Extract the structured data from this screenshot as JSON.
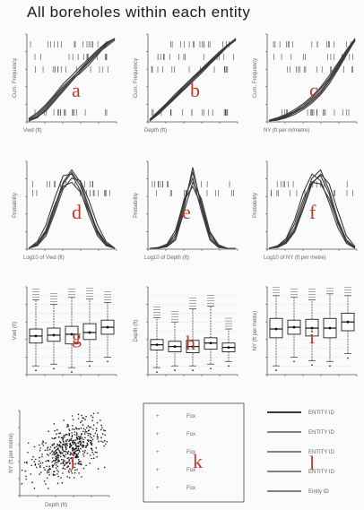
{
  "title": "All boreholes within each entity",
  "panel_letters": [
    "a",
    "b",
    "c",
    "d",
    "e",
    "f",
    "g",
    "h",
    "i",
    "j",
    "k",
    "l"
  ],
  "row1": {
    "type": "line",
    "panels": [
      {
        "id": "a",
        "ylabel": "Cum. Frequency",
        "xlabel": "Vwd (ft)"
      },
      {
        "id": "b",
        "ylabel": "Cum. Frequency",
        "xlabel": "Depth (ft)"
      },
      {
        "id": "c",
        "ylabel": "Cum. Frequency",
        "xlabel": "NY (ft per m/metre)"
      }
    ]
  },
  "row2": {
    "type": "line",
    "panels": [
      {
        "id": "d",
        "ylabel": "Probability",
        "xlabel": "Log10 of Vwd (ft)"
      },
      {
        "id": "e",
        "ylabel": "Probability",
        "xlabel": "Log10 of Depth (ft)"
      },
      {
        "id": "f",
        "ylabel": "Probability",
        "xlabel": "Log10 of NY (ft per metre)"
      }
    ]
  },
  "row3": {
    "type": "box",
    "panels": [
      {
        "id": "g",
        "ylabel": "Vwd (ft)"
      },
      {
        "id": "h",
        "ylabel": "Depth (ft)"
      },
      {
        "id": "i",
        "ylabel": "NY (ft per metre)"
      }
    ]
  },
  "row4": {
    "scatter": {
      "id": "j",
      "xlabel": "Depth (ft)",
      "ylabel": "NY (ft per metre)"
    },
    "legend_k": {
      "id": "k",
      "entries": [
        "Fox",
        "Fox",
        "Fox",
        "Fox",
        "Fox"
      ]
    },
    "legend_l": {
      "id": "l",
      "entries": [
        "ENTITY ID",
        "ENTITY ID",
        "ENTITY ID",
        "ENTITY ID",
        "Entity ID"
      ]
    }
  },
  "chart_data": [
    {
      "type": "line",
      "panel": "a",
      "series": [
        {
          "x": [
            0,
            1,
            2,
            3,
            4,
            5,
            6,
            7,
            8,
            9,
            10
          ],
          "values": [
            0.02,
            0.08,
            0.18,
            0.3,
            0.42,
            0.52,
            0.62,
            0.72,
            0.83,
            0.93,
            1.0
          ]
        },
        {
          "x": [
            0,
            1,
            2,
            3,
            4,
            5,
            6,
            7,
            8,
            9,
            10
          ],
          "values": [
            0.0,
            0.05,
            0.12,
            0.24,
            0.36,
            0.48,
            0.6,
            0.71,
            0.82,
            0.9,
            0.98
          ]
        },
        {
          "x": [
            0,
            1,
            2,
            3,
            4,
            5,
            6,
            7,
            8,
            9,
            10
          ],
          "values": [
            0.01,
            0.06,
            0.16,
            0.28,
            0.4,
            0.5,
            0.58,
            0.68,
            0.8,
            0.92,
            1.0
          ]
        },
        {
          "x": [
            0,
            1,
            2,
            3,
            4,
            5,
            6,
            7,
            8,
            9,
            10
          ],
          "values": [
            0.03,
            0.1,
            0.2,
            0.32,
            0.45,
            0.55,
            0.66,
            0.76,
            0.86,
            0.95,
            1.0
          ]
        },
        {
          "x": [
            0,
            1,
            2,
            3,
            4,
            5,
            6,
            7,
            8,
            9,
            10
          ],
          "values": [
            0.0,
            0.04,
            0.14,
            0.26,
            0.38,
            0.5,
            0.63,
            0.74,
            0.85,
            0.94,
            0.99
          ]
        }
      ]
    },
    {
      "type": "line",
      "panel": "b",
      "series": [
        {
          "x": [
            0,
            1,
            2,
            3,
            4,
            5,
            6,
            7,
            8,
            9,
            10
          ],
          "values": [
            0.0,
            0.1,
            0.2,
            0.3,
            0.4,
            0.5,
            0.6,
            0.7,
            0.8,
            0.9,
            1.0
          ]
        },
        {
          "x": [
            0,
            1,
            2,
            3,
            4,
            5,
            6,
            7,
            8,
            9,
            10
          ],
          "values": [
            0.02,
            0.12,
            0.22,
            0.33,
            0.43,
            0.53,
            0.63,
            0.73,
            0.83,
            0.92,
            1.0
          ]
        },
        {
          "x": [
            0,
            1,
            2,
            3,
            4,
            5,
            6,
            7,
            8,
            9,
            10
          ],
          "values": [
            0.0,
            0.08,
            0.18,
            0.28,
            0.38,
            0.48,
            0.58,
            0.69,
            0.79,
            0.9,
            0.99
          ]
        },
        {
          "x": [
            0,
            1,
            2,
            3,
            4,
            5,
            6,
            7,
            8,
            9,
            10
          ],
          "values": [
            0.01,
            0.11,
            0.21,
            0.31,
            0.42,
            0.52,
            0.62,
            0.72,
            0.82,
            0.91,
            1.0
          ]
        },
        {
          "x": [
            0,
            1,
            2,
            3,
            4,
            5,
            6,
            7,
            8,
            9,
            10
          ],
          "values": [
            0.0,
            0.09,
            0.19,
            0.29,
            0.39,
            0.5,
            0.61,
            0.71,
            0.81,
            0.9,
            0.98
          ]
        }
      ]
    },
    {
      "type": "line",
      "panel": "c",
      "series": [
        {
          "x": [
            0,
            1,
            2,
            3,
            4,
            5,
            6,
            7,
            8,
            9,
            10
          ],
          "values": [
            0.0,
            0.02,
            0.05,
            0.1,
            0.16,
            0.24,
            0.34,
            0.48,
            0.64,
            0.82,
            1.0
          ]
        },
        {
          "x": [
            0,
            1,
            2,
            3,
            4,
            5,
            6,
            7,
            8,
            9,
            10
          ],
          "values": [
            0.0,
            0.03,
            0.07,
            0.12,
            0.19,
            0.28,
            0.39,
            0.52,
            0.68,
            0.85,
            0.99
          ]
        },
        {
          "x": [
            0,
            1,
            2,
            3,
            4,
            5,
            6,
            7,
            8,
            9,
            10
          ],
          "values": [
            0.0,
            0.01,
            0.04,
            0.08,
            0.14,
            0.22,
            0.32,
            0.45,
            0.62,
            0.8,
            0.98
          ]
        },
        {
          "x": [
            0,
            1,
            2,
            3,
            4,
            5,
            6,
            7,
            8,
            9,
            10
          ],
          "values": [
            0.01,
            0.04,
            0.08,
            0.14,
            0.21,
            0.3,
            0.41,
            0.55,
            0.7,
            0.86,
            1.0
          ]
        },
        {
          "x": [
            0,
            1,
            2,
            3,
            4,
            5,
            6,
            7,
            8,
            9,
            10
          ],
          "values": [
            0.0,
            0.02,
            0.06,
            0.11,
            0.17,
            0.26,
            0.36,
            0.5,
            0.66,
            0.83,
            0.97
          ]
        }
      ]
    },
    {
      "type": "line",
      "panel": "d",
      "series": [
        {
          "x": [
            0,
            1,
            2,
            3,
            4,
            5,
            6,
            7,
            8,
            9,
            10
          ],
          "values": [
            0.0,
            0.05,
            0.2,
            0.5,
            0.8,
            0.95,
            0.8,
            0.5,
            0.2,
            0.05,
            0.0
          ]
        },
        {
          "x": [
            0,
            1,
            2,
            3,
            4,
            5,
            6,
            7,
            8,
            9,
            10
          ],
          "values": [
            0.0,
            0.08,
            0.28,
            0.6,
            0.88,
            0.9,
            0.7,
            0.4,
            0.15,
            0.03,
            0.0
          ]
        },
        {
          "x": [
            0,
            1,
            2,
            3,
            4,
            5,
            6,
            7,
            8,
            9,
            10
          ],
          "values": [
            0.0,
            0.03,
            0.15,
            0.42,
            0.72,
            0.85,
            0.82,
            0.58,
            0.28,
            0.08,
            0.0
          ]
        },
        {
          "x": [
            0,
            1,
            2,
            3,
            4,
            5,
            6,
            7,
            8,
            9,
            10
          ],
          "values": [
            0.0,
            0.06,
            0.22,
            0.52,
            0.75,
            0.8,
            0.68,
            0.45,
            0.22,
            0.06,
            0.0
          ]
        },
        {
          "x": [
            0,
            1,
            2,
            3,
            4,
            5,
            6,
            7,
            8,
            9,
            10
          ],
          "values": [
            0.0,
            0.04,
            0.18,
            0.46,
            0.78,
            0.92,
            0.76,
            0.46,
            0.18,
            0.04,
            0.0
          ]
        }
      ]
    },
    {
      "type": "line",
      "panel": "e",
      "series": [
        {
          "x": [
            0,
            1,
            2,
            3,
            4,
            5,
            6,
            7,
            8,
            9,
            10
          ],
          "values": [
            0.0,
            0.0,
            0.02,
            0.12,
            0.5,
            0.98,
            0.5,
            0.12,
            0.02,
            0.0,
            0.0
          ]
        },
        {
          "x": [
            0,
            1,
            2,
            3,
            4,
            5,
            6,
            7,
            8,
            9,
            10
          ],
          "values": [
            0.0,
            0.0,
            0.04,
            0.18,
            0.6,
            0.85,
            0.45,
            0.1,
            0.01,
            0.0,
            0.0
          ]
        },
        {
          "x": [
            0,
            1,
            2,
            3,
            4,
            5,
            6,
            7,
            8,
            9,
            10
          ],
          "values": [
            0.0,
            0.01,
            0.05,
            0.22,
            0.58,
            0.75,
            0.52,
            0.18,
            0.04,
            0.0,
            0.0
          ]
        },
        {
          "x": [
            0,
            1,
            2,
            3,
            4,
            5,
            6,
            7,
            8,
            9,
            10
          ],
          "values": [
            0.0,
            0.0,
            0.03,
            0.15,
            0.55,
            0.92,
            0.55,
            0.15,
            0.03,
            0.0,
            0.0
          ]
        },
        {
          "x": [
            0,
            1,
            2,
            3,
            4,
            5,
            6,
            7,
            8,
            9,
            10
          ],
          "values": [
            0.0,
            0.0,
            0.02,
            0.1,
            0.45,
            0.8,
            0.6,
            0.2,
            0.04,
            0.0,
            0.0
          ]
        }
      ]
    },
    {
      "type": "line",
      "panel": "f",
      "series": [
        {
          "x": [
            0,
            1,
            2,
            3,
            4,
            5,
            6,
            7,
            8,
            9,
            10
          ],
          "values": [
            0.0,
            0.02,
            0.08,
            0.25,
            0.55,
            0.85,
            0.95,
            0.7,
            0.35,
            0.1,
            0.0
          ]
        },
        {
          "x": [
            0,
            1,
            2,
            3,
            4,
            5,
            6,
            7,
            8,
            9,
            10
          ],
          "values": [
            0.0,
            0.03,
            0.12,
            0.35,
            0.68,
            0.9,
            0.82,
            0.55,
            0.25,
            0.06,
            0.0
          ]
        },
        {
          "x": [
            0,
            1,
            2,
            3,
            4,
            5,
            6,
            7,
            8,
            9,
            10
          ],
          "values": [
            0.0,
            0.01,
            0.06,
            0.2,
            0.48,
            0.78,
            0.9,
            0.78,
            0.45,
            0.15,
            0.02
          ]
        },
        {
          "x": [
            0,
            1,
            2,
            3,
            4,
            5,
            6,
            7,
            8,
            9,
            10
          ],
          "values": [
            0.0,
            0.02,
            0.1,
            0.3,
            0.6,
            0.8,
            0.78,
            0.6,
            0.32,
            0.1,
            0.01
          ]
        },
        {
          "x": [
            0,
            1,
            2,
            3,
            4,
            5,
            6,
            7,
            8,
            9,
            10
          ],
          "values": [
            0.0,
            0.02,
            0.07,
            0.22,
            0.5,
            0.8,
            0.88,
            0.66,
            0.3,
            0.08,
            0.0
          ]
        }
      ]
    },
    {
      "type": "box",
      "panel": "g",
      "boxes": [
        {
          "min": 1.0,
          "q1": 3.6,
          "median": 4.4,
          "q3": 5.2,
          "max": 8.5
        },
        {
          "min": 1.2,
          "q1": 3.8,
          "median": 4.5,
          "q3": 5.3,
          "max": 8.0
        },
        {
          "min": 0.8,
          "q1": 3.5,
          "median": 4.6,
          "q3": 5.5,
          "max": 8.8
        },
        {
          "min": 1.5,
          "q1": 4.0,
          "median": 4.8,
          "q3": 5.8,
          "max": 8.6
        },
        {
          "min": 2.0,
          "q1": 4.6,
          "median": 5.4,
          "q3": 6.2,
          "max": 8.2
        }
      ]
    },
    {
      "type": "box",
      "panel": "h",
      "boxes": [
        {
          "min": 0.8,
          "q1": 2.8,
          "median": 3.4,
          "q3": 4.0,
          "max": 6.5
        },
        {
          "min": 1.0,
          "q1": 2.6,
          "median": 3.2,
          "q3": 3.8,
          "max": 6.0
        },
        {
          "min": 1.0,
          "q1": 2.5,
          "median": 3.2,
          "q3": 3.9,
          "max": 7.5
        },
        {
          "min": 1.2,
          "q1": 2.9,
          "median": 3.6,
          "q3": 4.2,
          "max": 7.8
        },
        {
          "min": 1.5,
          "q1": 2.6,
          "median": 3.1,
          "q3": 3.6,
          "max": 5.2
        }
      ]
    },
    {
      "type": "box",
      "panel": "i",
      "boxes": [
        {
          "min": 1.0,
          "q1": 4.2,
          "median": 5.2,
          "q3": 6.4,
          "max": 9.0
        },
        {
          "min": 2.0,
          "q1": 4.6,
          "median": 5.4,
          "q3": 6.2,
          "max": 8.8
        },
        {
          "min": 1.6,
          "q1": 4.4,
          "median": 5.3,
          "q3": 6.3,
          "max": 8.5
        },
        {
          "min": 1.5,
          "q1": 4.2,
          "median": 5.3,
          "q3": 6.4,
          "max": 9.2
        },
        {
          "min": 2.4,
          "q1": 5.0,
          "median": 6.0,
          "q3": 7.0,
          "max": 9.0
        }
      ]
    },
    {
      "type": "scatter",
      "panel": "j",
      "n": 520,
      "center": [
        0.55,
        0.55
      ],
      "spread": [
        0.2,
        0.16
      ]
    }
  ],
  "colors": {
    "lines": "#3a3a3a",
    "axes": "#555555",
    "letters": "#c0392b",
    "dots": "#1a1a1a"
  }
}
